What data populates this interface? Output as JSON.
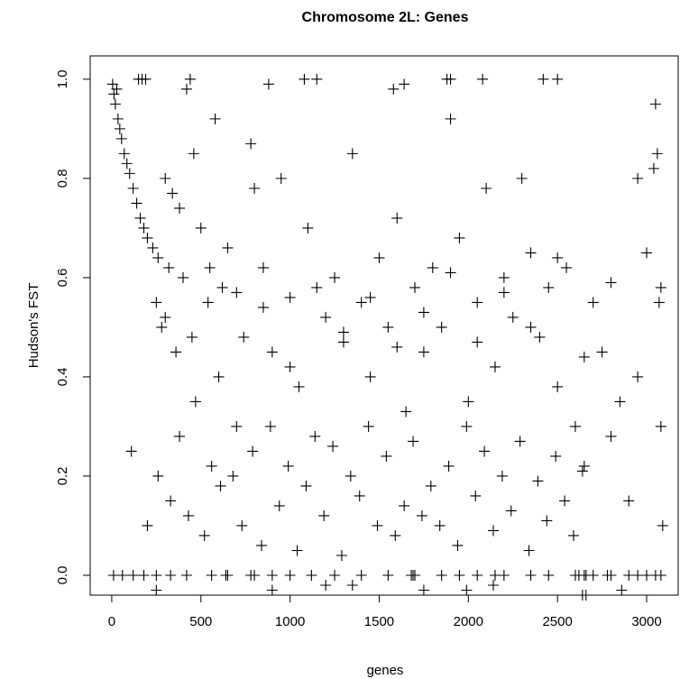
{
  "chart_data": {
    "type": "scatter",
    "title": "Chromosome 2L: Genes",
    "x_label": "genes",
    "y_label": "Hudson's FST",
    "xlim": [
      -121,
      3182
    ],
    "ylim": [
      -0.04,
      1.047
    ],
    "xticks": [
      0,
      500,
      1000,
      1500,
      2000,
      2500,
      3000
    ],
    "yticks": [
      {
        "value": 0,
        "label": "0.0"
      },
      0.2,
      0.4,
      0.6,
      0.8,
      {
        "value": 1,
        "label": "1.0"
      }
    ],
    "color": "#000000",
    "x": [
      5,
      12,
      20,
      28,
      35,
      45,
      55,
      70,
      85,
      100,
      120,
      140,
      160,
      180,
      200,
      230,
      260,
      300,
      340,
      380,
      150,
      170,
      190,
      250,
      280,
      320,
      360,
      400,
      420,
      460,
      500,
      540,
      580,
      600,
      620,
      650,
      700,
      740,
      780,
      800,
      850,
      900,
      950,
      1000,
      1050,
      1100,
      1150,
      1200,
      1250,
      1300,
      1350,
      1400,
      1450,
      1500,
      1550,
      1600,
      1650,
      1700,
      1750,
      1800,
      1850,
      1900,
      1950,
      2000,
      2050,
      2100,
      2150,
      2200,
      2250,
      2300,
      2350,
      2400,
      2450,
      2500,
      2550,
      2600,
      2650,
      2700,
      2750,
      2800,
      2850,
      2900,
      2950,
      3000,
      3050,
      3060,
      3070,
      3080,
      3090,
      3040,
      110,
      200,
      260,
      330,
      380,
      430,
      470,
      520,
      560,
      610,
      680,
      730,
      790,
      840,
      890,
      940,
      990,
      1040,
      1090,
      1140,
      1190,
      1240,
      1290,
      1340,
      1390,
      1440,
      1490,
      1540,
      1590,
      1640,
      1690,
      1740,
      1790,
      1840,
      1890,
      1940,
      1990,
      2040,
      2090,
      2140,
      2190,
      2240,
      2290,
      2340,
      2390,
      2440,
      2490,
      2540,
      2590,
      2640,
      10,
      60,
      120,
      180,
      250,
      330,
      420,
      560,
      640,
      650,
      780,
      800,
      900,
      1000,
      1120,
      1250,
      1400,
      1550,
      1680,
      1690,
      1700,
      1850,
      1950,
      2050,
      2150,
      2200,
      2350,
      2450,
      2600,
      2620,
      2650,
      2700,
      2780,
      2800,
      2900,
      2950,
      3000,
      3050,
      3080,
      2660,
      300,
      450,
      550,
      700,
      850,
      1000,
      1150,
      1300,
      1450,
      1600,
      1750,
      1900,
      2050,
      2200,
      2350,
      2500,
      2650,
      2800,
      2950,
      3080,
      1080,
      1640,
      1880,
      1900,
      2080,
      2420,
      2500,
      1580,
      880,
      440,
      250,
      1200,
      1750,
      1990,
      2140,
      2640,
      2660,
      1350,
      900,
      2860
    ],
    "values": [
      0.99,
      0.97,
      0.95,
      0.98,
      0.92,
      0.9,
      0.88,
      0.85,
      0.83,
      0.81,
      0.78,
      0.75,
      0.72,
      0.7,
      0.68,
      0.66,
      0.64,
      0.8,
      0.77,
      0.74,
      1.0,
      1.0,
      1.0,
      0.55,
      0.5,
      0.62,
      0.45,
      0.6,
      0.98,
      0.85,
      0.7,
      0.55,
      0.92,
      0.4,
      0.58,
      0.66,
      0.3,
      0.48,
      0.87,
      0.78,
      0.62,
      0.45,
      0.8,
      0.56,
      0.38,
      0.7,
      1.0,
      0.52,
      0.6,
      0.47,
      0.85,
      0.55,
      0.4,
      0.64,
      0.5,
      0.72,
      0.33,
      0.58,
      0.45,
      0.62,
      0.5,
      0.92,
      0.68,
      0.35,
      0.55,
      0.78,
      0.42,
      0.6,
      0.52,
      0.8,
      0.65,
      0.48,
      0.58,
      0.38,
      0.62,
      0.3,
      0.22,
      0.55,
      0.45,
      0.28,
      0.35,
      0.15,
      0.8,
      0.65,
      0.95,
      0.85,
      0.55,
      0.3,
      0.1,
      0.82,
      0.25,
      0.1,
      0.2,
      0.15,
      0.28,
      0.12,
      0.35,
      0.08,
      0.22,
      0.18,
      0.2,
      0.1,
      0.25,
      0.06,
      0.3,
      0.14,
      0.22,
      0.05,
      0.18,
      0.28,
      0.12,
      0.26,
      0.04,
      0.2,
      0.16,
      0.3,
      0.1,
      0.24,
      0.08,
      0.14,
      0.27,
      0.12,
      0.18,
      0.1,
      0.22,
      0.06,
      0.3,
      0.16,
      0.25,
      0.09,
      0.2,
      0.13,
      0.27,
      0.05,
      0.19,
      0.11,
      0.24,
      0.15,
      0.08,
      0.21,
      0,
      0,
      0,
      0,
      0,
      0,
      0,
      0,
      0,
      0,
      0,
      0,
      0,
      0,
      0,
      0,
      0,
      0,
      0,
      0,
      0,
      0,
      0,
      0,
      0,
      0,
      0,
      0,
      0,
      0,
      0,
      0,
      0,
      0,
      0,
      0,
      0,
      0,
      0,
      0,
      0.52,
      0.48,
      0.62,
      0.57,
      0.54,
      0.42,
      0.58,
      0.49,
      0.56,
      0.46,
      0.53,
      0.61,
      0.47,
      0.57,
      0.5,
      0.64,
      0.44,
      0.59,
      0.4,
      0.58,
      1.0,
      0.99,
      1.0,
      1.0,
      1.0,
      1.0,
      1.0,
      0.98,
      0.99,
      1.0,
      -0.03,
      -0.02,
      -0.03,
      -0.03,
      -0.02,
      -0.04,
      -0.04,
      -0.02,
      -0.03,
      -0.03
    ]
  }
}
